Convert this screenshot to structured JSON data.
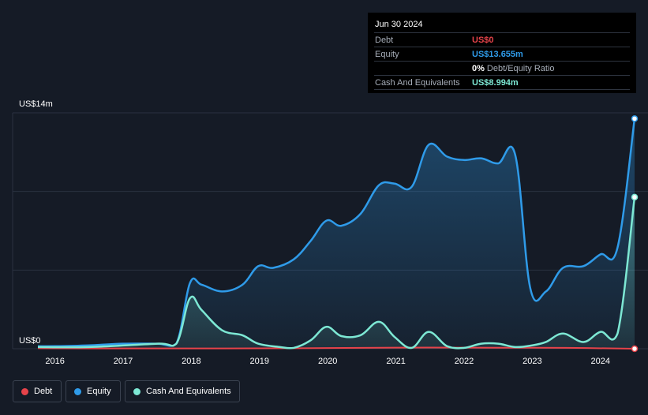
{
  "tooltip": {
    "date": "Jun 30 2024",
    "rows": [
      {
        "label": "Debt",
        "value": "US$0",
        "color": "#e6434a"
      },
      {
        "label": "Equity",
        "value": "US$13.655m",
        "color": "#2f9be9"
      },
      {
        "label": "",
        "value": "0%",
        "color": "#ffffff",
        "suffix": "Debt/Equity Ratio"
      },
      {
        "label": "Cash And Equivalents",
        "value": "US$8.994m",
        "color": "#7de8d4"
      }
    ]
  },
  "legend": [
    {
      "label": "Debt",
      "color": "#e6434a"
    },
    {
      "label": "Equity",
      "color": "#2f9be9"
    },
    {
      "label": "Cash And Equivalents",
      "color": "#7de8d4"
    }
  ],
  "chart_data": {
    "type": "line",
    "y_top_label": "US$14m",
    "y_bottom_label": "US$0",
    "ylim": [
      0,
      14
    ],
    "xlim": [
      2015.75,
      2024.5
    ],
    "x_ticks": [
      "2016",
      "2017",
      "2018",
      "2019",
      "2020",
      "2021",
      "2022",
      "2023",
      "2024"
    ],
    "grid": true,
    "legend_position": "bottom-left",
    "series": [
      {
        "name": "Debt",
        "color": "#e6434a",
        "x": [
          2015.75,
          2016.5,
          2017.5,
          2018.5,
          2019.5,
          2020.5,
          2021.5,
          2022.5,
          2023.5,
          2024.5
        ],
        "y": [
          0.03,
          0.02,
          0.02,
          0.02,
          0.03,
          0.05,
          0.07,
          0.06,
          0.05,
          0
        ]
      },
      {
        "name": "Equity",
        "color": "#2f9be9",
        "x": [
          2015.75,
          2016.0,
          2016.5,
          2017.0,
          2017.5,
          2017.78,
          2017.98,
          2018.15,
          2018.45,
          2018.75,
          2018.98,
          2019.2,
          2019.5,
          2019.75,
          2019.98,
          2020.2,
          2020.48,
          2020.75,
          2020.98,
          2021.23,
          2021.48,
          2021.75,
          2022.0,
          2022.25,
          2022.5,
          2022.75,
          2022.97,
          2023.2,
          2023.45,
          2023.75,
          2024.0,
          2024.25,
          2024.5
        ],
        "y": [
          0.15,
          0.15,
          0.2,
          0.3,
          0.3,
          0.3,
          3.9,
          3.8,
          3.4,
          3.8,
          4.9,
          4.8,
          5.3,
          6.4,
          7.6,
          7.3,
          8.0,
          9.7,
          9.8,
          9.6,
          12.1,
          11.4,
          11.2,
          11.3,
          11.0,
          11.5,
          3.6,
          3.4,
          4.8,
          4.9,
          5.6,
          6.0,
          13.655
        ]
      },
      {
        "name": "Cash And Equivalents",
        "color": "#7de8d4",
        "x": [
          2015.75,
          2016.5,
          2017.5,
          2017.78,
          2017.98,
          2018.15,
          2018.45,
          2018.75,
          2018.98,
          2019.3,
          2019.5,
          2019.75,
          2019.98,
          2020.2,
          2020.48,
          2020.75,
          2020.98,
          2021.23,
          2021.48,
          2021.75,
          2022.0,
          2022.25,
          2022.5,
          2022.75,
          2023.0,
          2023.2,
          2023.45,
          2023.75,
          2024.0,
          2024.25,
          2024.5
        ],
        "y": [
          0.1,
          0.1,
          0.3,
          0.3,
          3.0,
          2.3,
          1.1,
          0.8,
          0.3,
          0.1,
          0.05,
          0.5,
          1.3,
          0.75,
          0.8,
          1.6,
          0.7,
          0.05,
          1.0,
          0.15,
          0.05,
          0.3,
          0.3,
          0.1,
          0.2,
          0.4,
          0.9,
          0.4,
          1.0,
          0.9,
          8.994
        ]
      }
    ]
  }
}
